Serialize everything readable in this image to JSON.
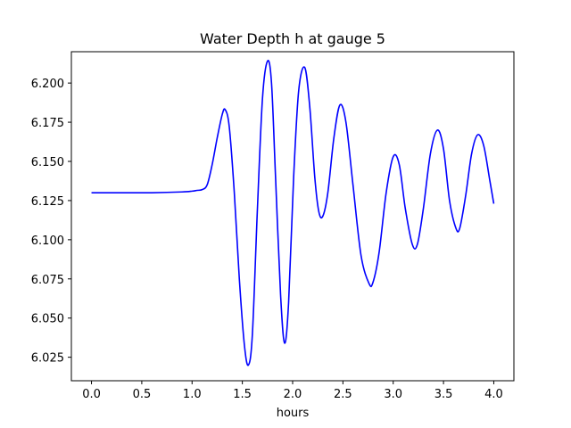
{
  "chart_data": {
    "type": "line",
    "title": "Water Depth h at gauge 5",
    "xlabel": "hours",
    "ylabel": "",
    "xlim": [
      -0.2,
      4.2
    ],
    "ylim": [
      6.01,
      6.22
    ],
    "grid": false,
    "legend": "none",
    "x_ticks": [
      0.0,
      0.5,
      1.0,
      1.5,
      2.0,
      2.5,
      3.0,
      3.5,
      4.0
    ],
    "x_tick_labels": [
      "0.0",
      "0.5",
      "1.0",
      "1.5",
      "2.0",
      "2.5",
      "3.0",
      "3.5",
      "4.0"
    ],
    "y_ticks": [
      6.025,
      6.05,
      6.075,
      6.1,
      6.125,
      6.15,
      6.175,
      6.2
    ],
    "y_tick_labels": [
      "6.025",
      "6.050",
      "6.075",
      "6.100",
      "6.125",
      "6.150",
      "6.175",
      "6.200"
    ],
    "series": [
      {
        "color": "#0000ff",
        "x": [
          0.0,
          0.3,
          0.6,
          0.9,
          1.0,
          1.05,
          1.1,
          1.15,
          1.2,
          1.25,
          1.3,
          1.33,
          1.37,
          1.42,
          1.47,
          1.52,
          1.56,
          1.6,
          1.65,
          1.7,
          1.75,
          1.79,
          1.83,
          1.88,
          1.92,
          1.96,
          2.01,
          2.06,
          2.12,
          2.17,
          2.22,
          2.26,
          2.3,
          2.35,
          2.41,
          2.47,
          2.53,
          2.6,
          2.68,
          2.76,
          2.8,
          2.86,
          2.93,
          3.0,
          3.06,
          3.12,
          3.19,
          3.24,
          3.3,
          3.37,
          3.44,
          3.5,
          3.56,
          3.62,
          3.66,
          3.72,
          3.78,
          3.84,
          3.9,
          3.96,
          4.0
        ],
        "y": [
          6.13,
          6.13,
          6.13,
          6.1305,
          6.131,
          6.1315,
          6.132,
          6.135,
          6.148,
          6.165,
          6.18,
          6.183,
          6.172,
          6.13,
          6.075,
          6.033,
          6.02,
          6.04,
          6.12,
          6.19,
          6.214,
          6.2,
          6.14,
          6.065,
          6.034,
          6.06,
          6.14,
          6.195,
          6.21,
          6.185,
          6.14,
          6.118,
          6.115,
          6.13,
          6.165,
          6.186,
          6.175,
          6.135,
          6.09,
          6.072,
          6.073,
          6.092,
          6.13,
          6.153,
          6.148,
          6.12,
          6.097,
          6.097,
          6.12,
          6.155,
          6.17,
          6.158,
          6.125,
          6.108,
          6.107,
          6.128,
          6.155,
          6.167,
          6.16,
          6.138,
          6.123
        ]
      }
    ]
  }
}
